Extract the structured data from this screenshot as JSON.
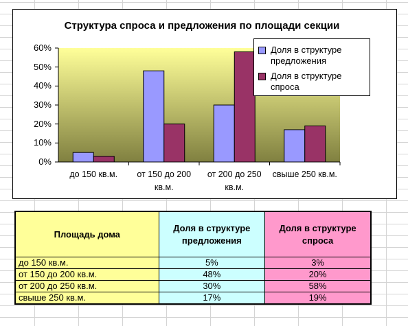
{
  "chart_data": {
    "type": "bar",
    "title": "Структура спроса и предложения по площади секции",
    "categories": [
      "до 150 кв.м.",
      "от 150 до 200 кв.м.",
      "от 200 до 250 кв.м.",
      "свыше 250 кв.м."
    ],
    "series": [
      {
        "name": "Доля в структуре предложения",
        "values": [
          5,
          48,
          30,
          17
        ],
        "color": "#9999ff"
      },
      {
        "name": "Доля в структуре спроса",
        "values": [
          3,
          20,
          58,
          19
        ],
        "color": "#993366"
      }
    ],
    "yticks": [
      "0%",
      "10%",
      "20%",
      "30%",
      "40%",
      "50%",
      "60%"
    ],
    "ylim": [
      0,
      60
    ],
    "legend": "top-right",
    "grid": false
  },
  "table": {
    "headers": [
      "Площадь дома",
      "Доля в структуре предложения",
      "Доля в структуре спроса"
    ],
    "rows": [
      [
        "до 150 кв.м.",
        "5%",
        "3%"
      ],
      [
        "от 150 до 200 кв.м.",
        "48%",
        "20%"
      ],
      [
        "от 200 до 250 кв.м.",
        "30%",
        "58%"
      ],
      [
        "свыше 250 кв.м.",
        "17%",
        "19%"
      ]
    ]
  },
  "colors": {
    "plot_gradient_top": "#ffff99",
    "plot_gradient_bottom": "#808040",
    "col1_bg": "#ffff99",
    "col2_bg": "#ccffff",
    "col3_bg": "#ff99cc"
  }
}
